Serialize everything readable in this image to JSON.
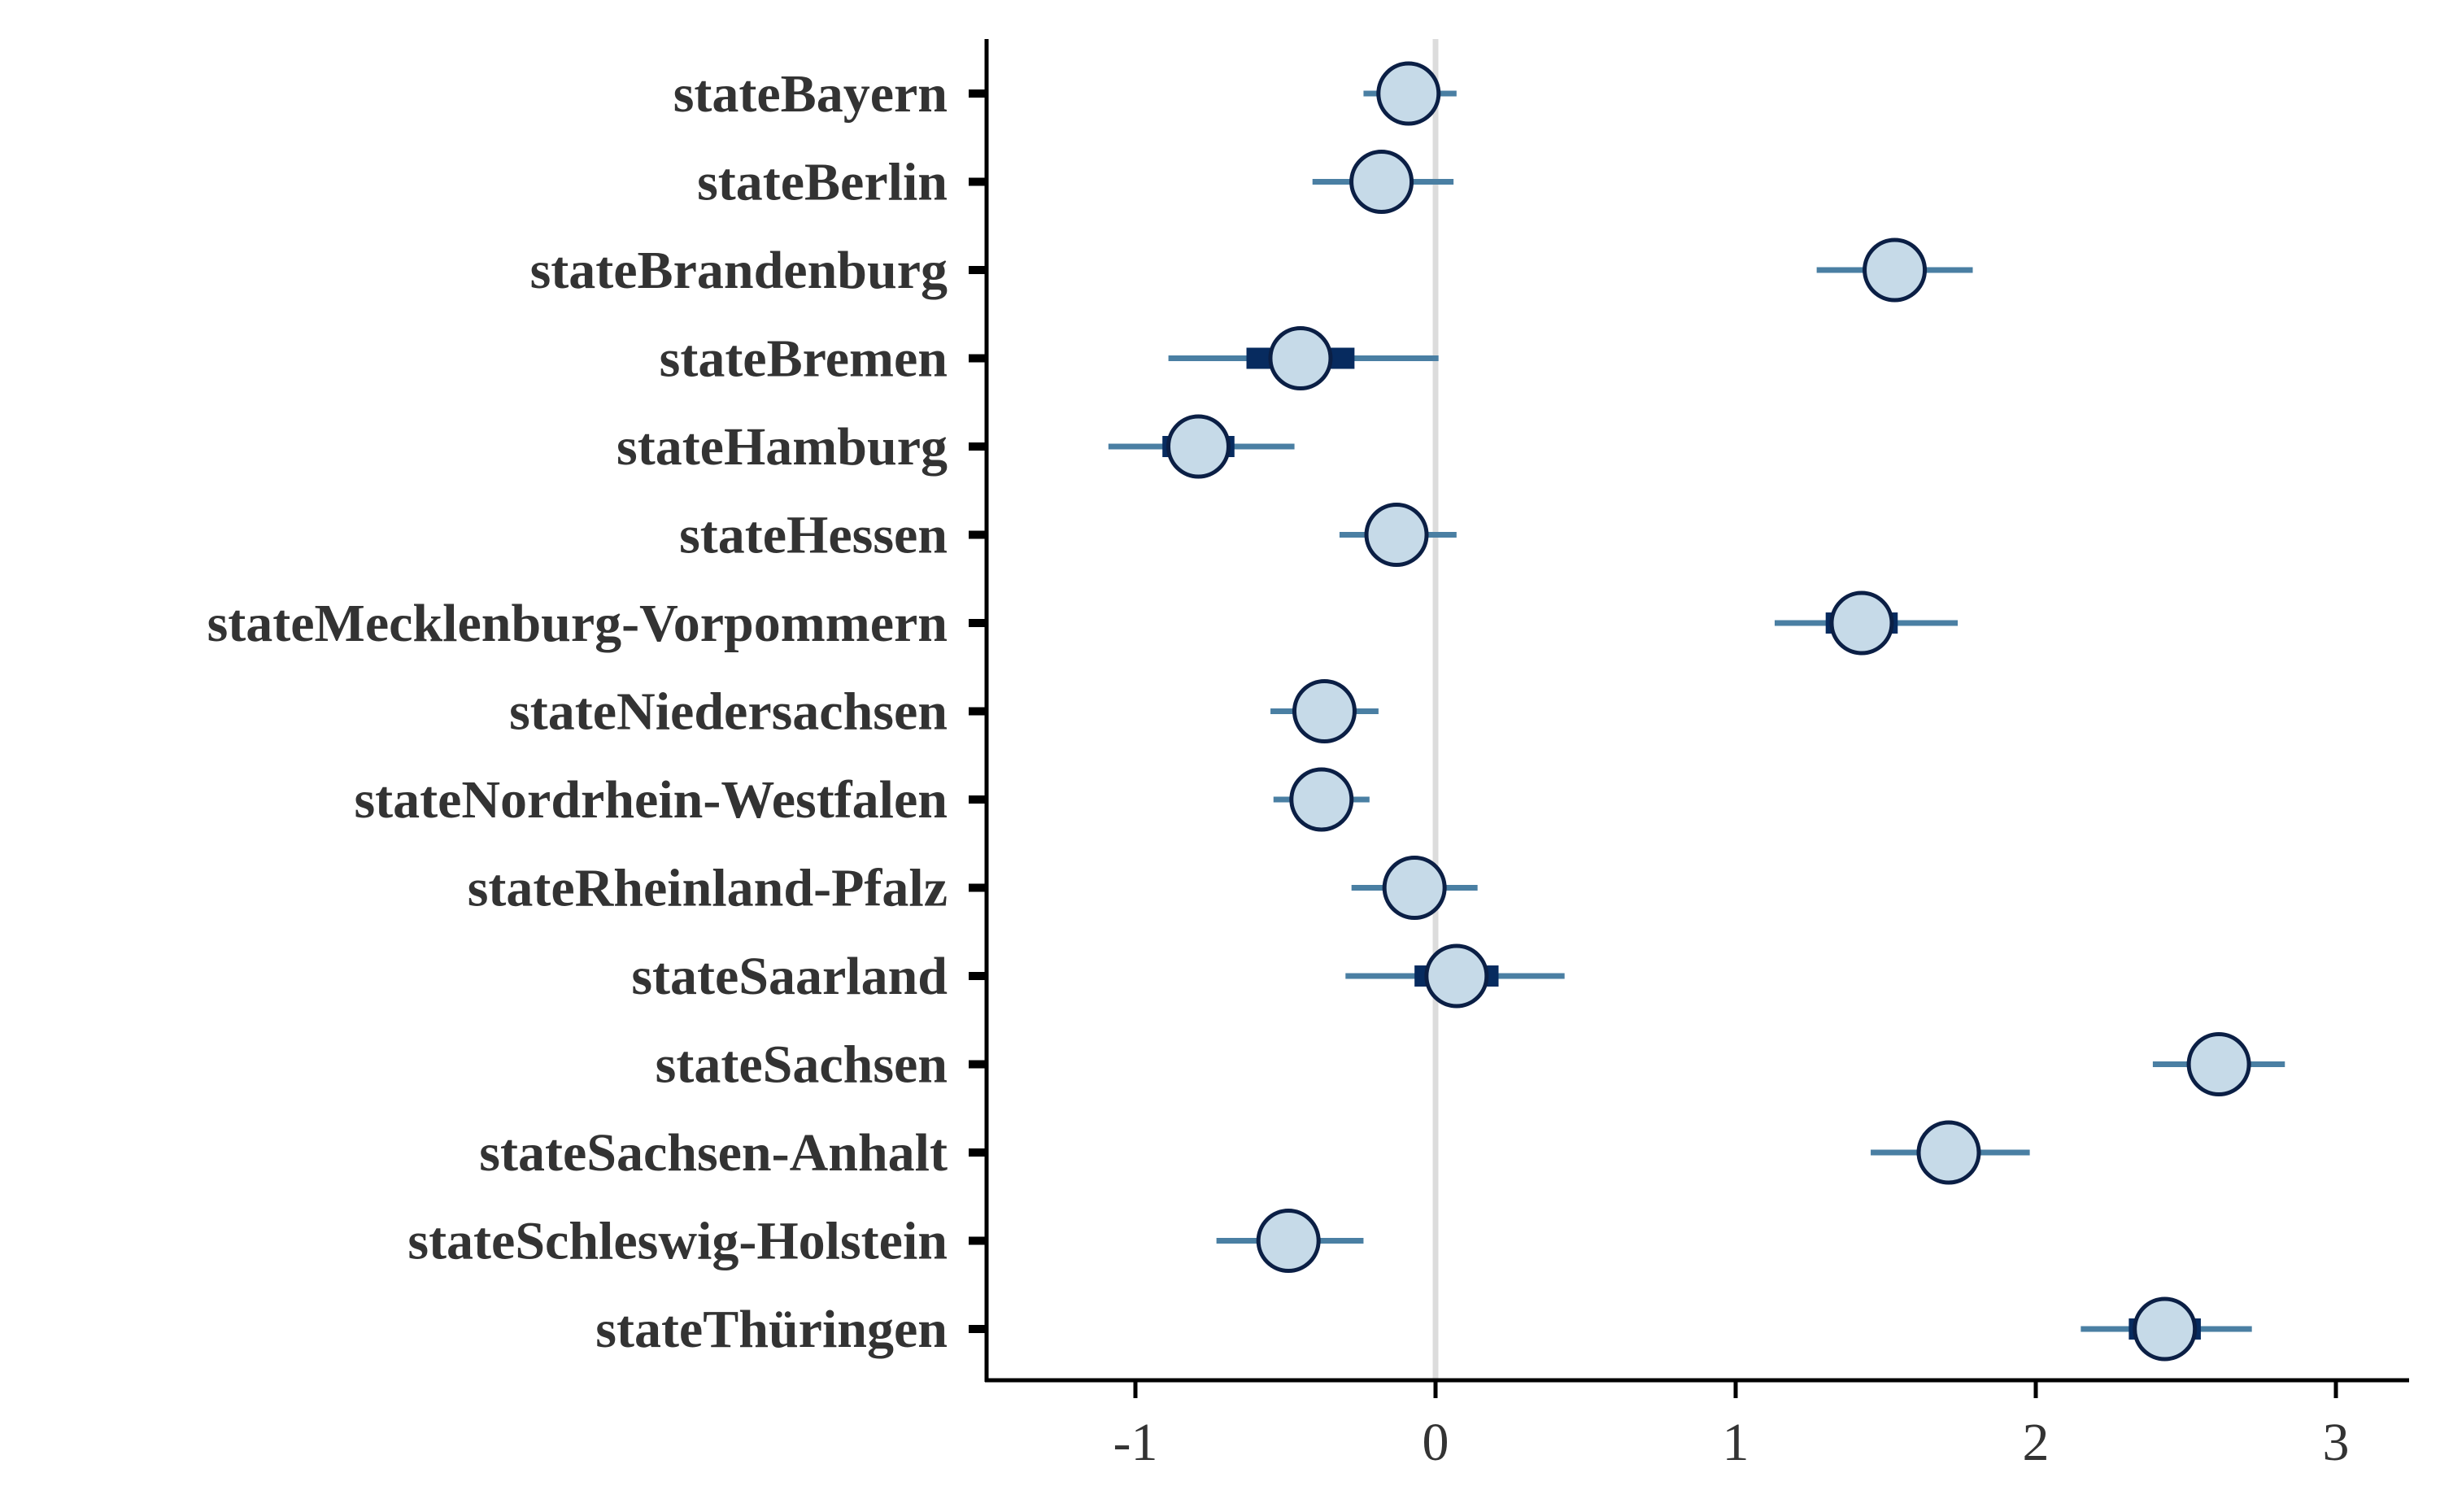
{
  "chart_data": {
    "type": "interval",
    "title": "",
    "xlabel": "",
    "ylabel": "",
    "xlim": [
      -1.5,
      3.25
    ],
    "xticks": [
      -1,
      0,
      1,
      2,
      3
    ],
    "xtick_labels": [
      "-1",
      "0",
      "1",
      "2",
      "3"
    ],
    "reference_line_x": 0,
    "grid": false,
    "legend": "none",
    "colors": {
      "point_fill": "#c6dae8",
      "point_stroke": "#0b1f45",
      "outer_interval": "#4a7fa3",
      "inner_interval": "#072b5f",
      "reference_line": "#dcdcdc",
      "axis": "#000000",
      "text": "#333333"
    },
    "categories": [
      "stateBayern",
      "stateBerlin",
      "stateBrandenburg",
      "stateBremen",
      "stateHamburg",
      "stateHessen",
      "stateMecklenburg-Vorpommern",
      "stateNiedersachsen",
      "stateNordrhein-Westfalen",
      "stateRheinland-Pfalz",
      "stateSaarland",
      "stateSachsen",
      "stateSachsen-Anhalt",
      "stateSchleswig-Holstein",
      "stateThüringen"
    ],
    "estimates": [
      {
        "estimate": -0.09,
        "outer": [
          -0.24,
          0.07
        ],
        "inner": [
          -0.13,
          -0.05
        ]
      },
      {
        "estimate": -0.18,
        "outer": [
          -0.41,
          0.06
        ],
        "inner": [
          -0.22,
          -0.14
        ]
      },
      {
        "estimate": 1.53,
        "outer": [
          1.27,
          1.79
        ],
        "inner": [
          1.43,
          1.63
        ]
      },
      {
        "estimate": -0.45,
        "outer": [
          -0.89,
          0.01
        ],
        "inner": [
          -0.63,
          -0.27
        ]
      },
      {
        "estimate": -0.79,
        "outer": [
          -1.09,
          -0.47
        ],
        "inner": [
          -0.91,
          -0.67
        ]
      },
      {
        "estimate": -0.13,
        "outer": [
          -0.32,
          0.07
        ],
        "inner": [
          -0.17,
          -0.09
        ]
      },
      {
        "estimate": 1.42,
        "outer": [
          1.13,
          1.74
        ],
        "inner": [
          1.3,
          1.54
        ]
      },
      {
        "estimate": -0.37,
        "outer": [
          -0.55,
          -0.19
        ],
        "inner": [
          -0.41,
          -0.33
        ]
      },
      {
        "estimate": -0.38,
        "outer": [
          -0.54,
          -0.22
        ],
        "inner": [
          -0.42,
          -0.34
        ]
      },
      {
        "estimate": -0.07,
        "outer": [
          -0.28,
          0.14
        ],
        "inner": [
          -0.11,
          -0.03
        ]
      },
      {
        "estimate": 0.07,
        "outer": [
          -0.3,
          0.43
        ],
        "inner": [
          -0.07,
          0.21
        ]
      },
      {
        "estimate": 2.61,
        "outer": [
          2.39,
          2.83
        ],
        "inner": [
          2.57,
          2.65
        ]
      },
      {
        "estimate": 1.71,
        "outer": [
          1.45,
          1.98
        ],
        "inner": [
          1.61,
          1.81
        ]
      },
      {
        "estimate": -0.49,
        "outer": [
          -0.73,
          -0.24
        ],
        "inner": [
          -0.53,
          -0.45
        ]
      },
      {
        "estimate": 2.43,
        "outer": [
          2.15,
          2.72
        ],
        "inner": [
          2.31,
          2.55
        ]
      }
    ]
  }
}
